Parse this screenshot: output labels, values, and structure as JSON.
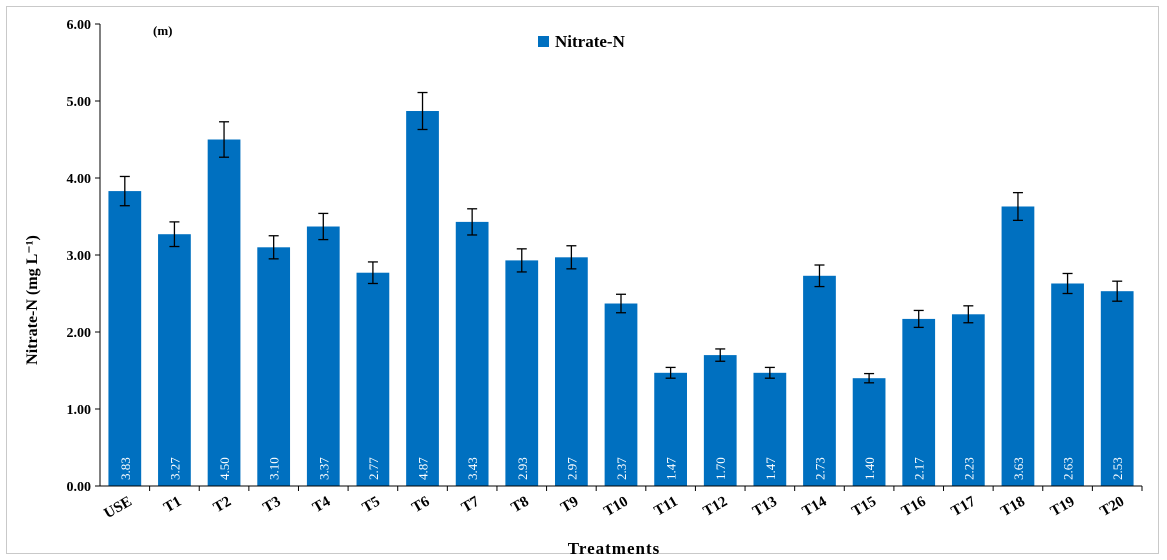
{
  "chart_data": {
    "type": "bar",
    "panel_label": "(m)",
    "xlabel": "Treatments",
    "ylabel": "Nitrate-N (mg L⁻¹)",
    "ylim": [
      0,
      6
    ],
    "yticks": [
      "0.00",
      "1.00",
      "2.00",
      "3.00",
      "4.00",
      "5.00",
      "6.00"
    ],
    "grid": false,
    "legend_position": "top-center",
    "error_bars": true,
    "categories": [
      "USE",
      "T1",
      "T2",
      "T3",
      "T4",
      "T5",
      "T6",
      "T7",
      "T8",
      "T9",
      "T10",
      "T11",
      "T12",
      "T13",
      "T14",
      "T15",
      "T16",
      "T17",
      "T18",
      "T19",
      "T20"
    ],
    "series": [
      {
        "name": "Nitrate-N",
        "color": "#0070c0",
        "values": [
          3.83,
          3.27,
          4.5,
          3.1,
          3.37,
          2.77,
          4.87,
          3.43,
          2.93,
          2.97,
          2.37,
          1.47,
          1.7,
          1.47,
          2.73,
          1.4,
          2.17,
          2.23,
          3.63,
          2.63,
          2.53
        ],
        "labels": [
          "3.83",
          "3.27",
          "4.50",
          "3.10",
          "3.37",
          "2.77",
          "4.87",
          "3.43",
          "2.93",
          "2.97",
          "2.37",
          "1.47",
          "1.70",
          "1.47",
          "2.73",
          "1.40",
          "2.17",
          "2.23",
          "3.63",
          "2.63",
          "2.53"
        ],
        "errors": [
          0.19,
          0.16,
          0.23,
          0.15,
          0.17,
          0.14,
          0.24,
          0.17,
          0.15,
          0.15,
          0.12,
          0.07,
          0.08,
          0.07,
          0.14,
          0.06,
          0.11,
          0.11,
          0.18,
          0.13,
          0.13
        ]
      }
    ]
  }
}
